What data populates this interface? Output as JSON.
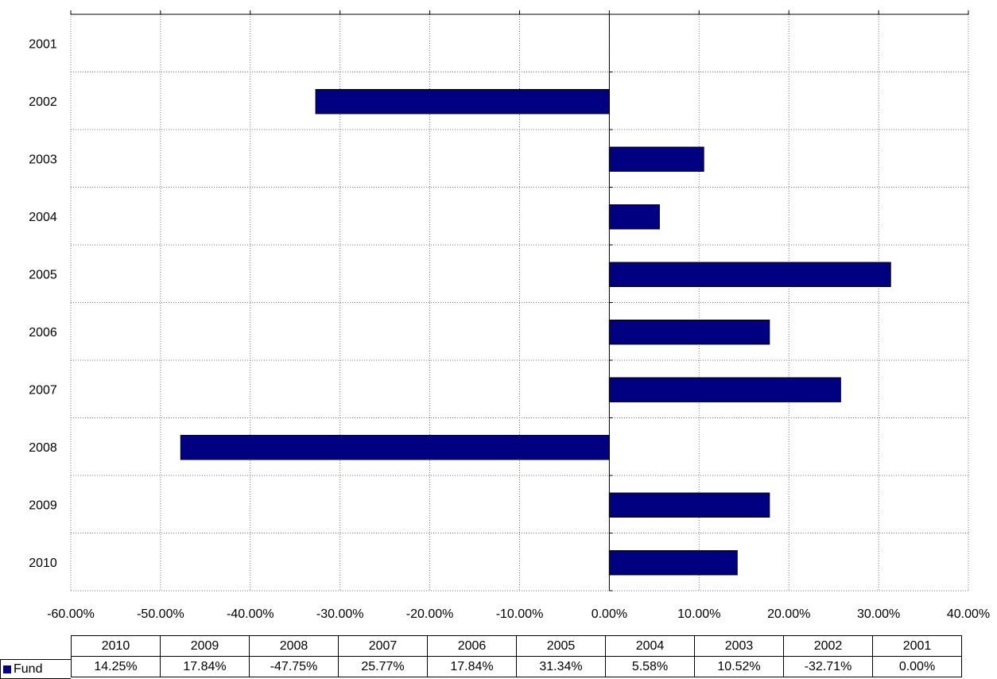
{
  "chart_data": {
    "type": "bar",
    "orientation": "horizontal",
    "categories": [
      "2001",
      "2002",
      "2003",
      "2004",
      "2005",
      "2006",
      "2007",
      "2008",
      "2009",
      "2010"
    ],
    "series": [
      {
        "name": "Fund",
        "color": "#000080",
        "values": [
          0.0,
          -32.71,
          10.52,
          5.58,
          31.34,
          17.84,
          25.77,
          -47.75,
          17.84,
          14.25
        ]
      }
    ],
    "xlim": [
      -60,
      40
    ],
    "xticks": [
      "-60.00%",
      "-50.00%",
      "-40.00%",
      "-30.00%",
      "-20.00%",
      "-10.00%",
      "0.00%",
      "10.00%",
      "20.00%",
      "30.00%",
      "40.00%"
    ],
    "grid": true,
    "grid_style": "dotted",
    "data_table": {
      "header": [
        "2010",
        "2009",
        "2008",
        "2007",
        "2006",
        "2005",
        "2004",
        "2003",
        "2002",
        "2001"
      ],
      "row_label": "Fund",
      "row": [
        "14.25%",
        "17.84%",
        "-47.75%",
        "25.77%",
        "17.84%",
        "31.34%",
        "5.58%",
        "10.52%",
        "-32.71%",
        "0.00%"
      ]
    }
  }
}
